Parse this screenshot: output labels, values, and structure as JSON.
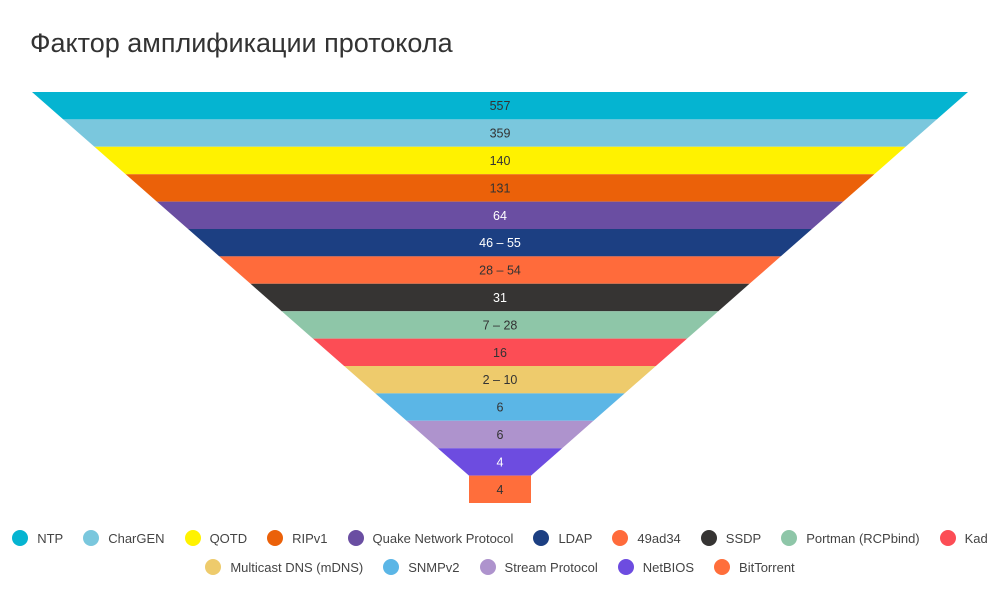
{
  "chart_data": {
    "type": "funnel",
    "title": "Фактор амплификации протокола",
    "series": [
      {
        "name": "NTP",
        "label": "557",
        "color": "#05b4d1"
      },
      {
        "name": "CharGEN",
        "label": "359",
        "color": "#7ac7dd"
      },
      {
        "name": "QOTD",
        "label": "140",
        "color": "#fff200"
      },
      {
        "name": "RIPv1",
        "label": "131",
        "color": "#eb6109"
      },
      {
        "name": "Quake Network Protocol",
        "label": "64",
        "color": "#6a4ea2"
      },
      {
        "name": "LDAP",
        "label": "46 – 55",
        "color": "#1c3f82"
      },
      {
        "name": "49ad34",
        "label": "28 – 54",
        "color": "#ff6b3b"
      },
      {
        "name": "SSDP",
        "label": "31",
        "color": "#363433"
      },
      {
        "name": "Portman (RCPbind)",
        "label": "7 – 28",
        "color": "#8ec6a8"
      },
      {
        "name": "Kad",
        "label": "16",
        "color": "#fc4d55"
      },
      {
        "name": "Multicast DNS (mDNS)",
        "label": "2 – 10",
        "color": "#eecb6c"
      },
      {
        "name": "SNMPv2",
        "label": "6",
        "color": "#5bb6e6"
      },
      {
        "name": "Stream Protocol",
        "label": "6",
        "color": "#ae93cd"
      },
      {
        "name": "NetBIOS",
        "label": "4",
        "color": "#6d4ce0"
      },
      {
        "name": "BitTorrent",
        "label": "4",
        "color": "#ff6e3b"
      }
    ],
    "legend_position": "bottom"
  }
}
